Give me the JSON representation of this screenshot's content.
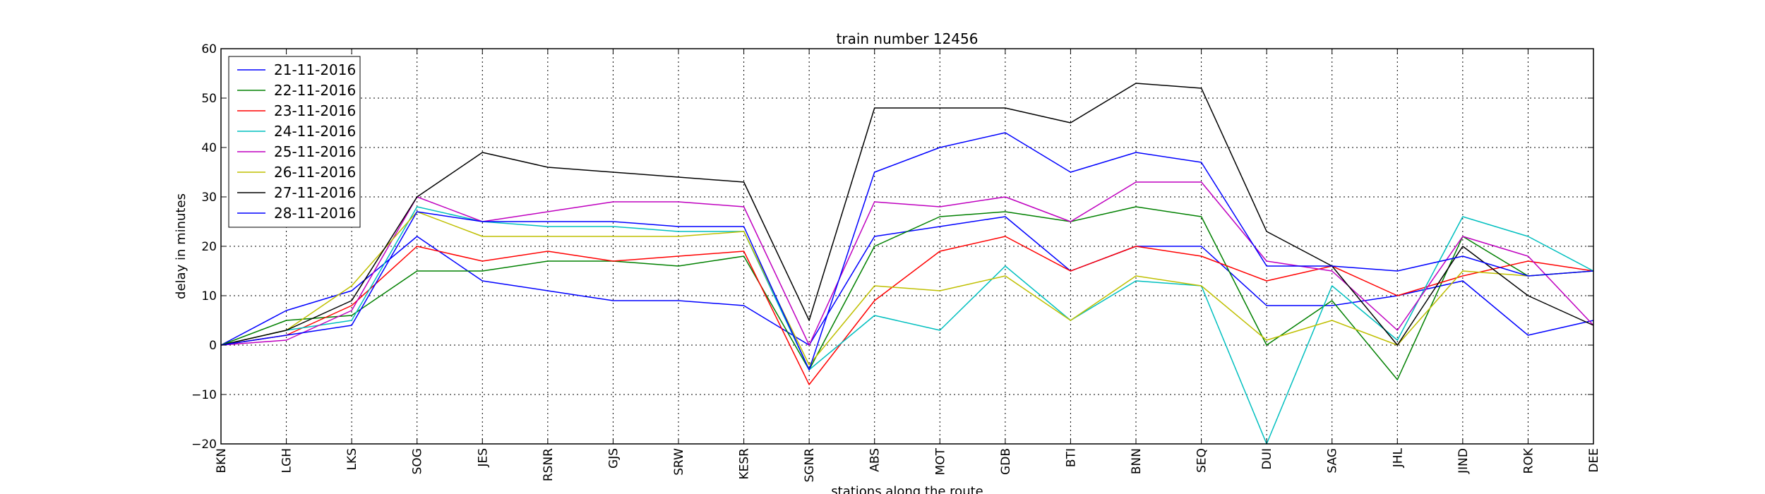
{
  "chart_data": {
    "type": "line",
    "title": "train number 12456",
    "xlabel": "stations along the route",
    "ylabel": "delay in minutes",
    "ylim": [
      -20,
      60
    ],
    "yticks": [
      -20,
      -10,
      0,
      10,
      20,
      30,
      40,
      50,
      60
    ],
    "grid": true,
    "legend_position": "top-left",
    "categories": [
      "BKN",
      "LGH",
      "LKS",
      "SOG",
      "JES",
      "RSNR",
      "GJS",
      "SRW",
      "KESR",
      "SGNR",
      "ABS",
      "MOT",
      "GDB",
      "BTI",
      "BNN",
      "SEQ",
      "DUI",
      "SAG",
      "JHL",
      "JIND",
      "ROK",
      "DEE"
    ],
    "series": [
      {
        "name": "21-11-2016",
        "color": "#0000ff",
        "values": [
          0,
          7,
          11,
          22,
          13,
          11,
          9,
          9,
          8,
          0,
          22,
          24,
          26,
          15,
          20,
          20,
          8,
          8,
          10,
          13,
          2,
          5
        ]
      },
      {
        "name": "22-11-2016",
        "color": "#008000",
        "values": [
          0,
          5,
          6,
          15,
          15,
          17,
          17,
          16,
          18,
          -5,
          20,
          26,
          27,
          25,
          28,
          26,
          0,
          9,
          -7,
          22,
          14,
          15
        ]
      },
      {
        "name": "23-11-2016",
        "color": "#ff0000",
        "values": [
          0,
          2,
          8,
          20,
          17,
          19,
          17,
          18,
          19,
          -8,
          9,
          19,
          22,
          15,
          20,
          18,
          13,
          16,
          10,
          14,
          17,
          15
        ]
      },
      {
        "name": "24-11-2016",
        "color": "#00bfbf",
        "values": [
          0,
          3,
          5,
          28,
          25,
          24,
          24,
          23,
          23,
          -5,
          6,
          3,
          16,
          5,
          13,
          12,
          -20,
          12,
          1,
          26,
          22,
          15
        ]
      },
      {
        "name": "25-11-2016",
        "color": "#bf00bf",
        "values": [
          0,
          1,
          7,
          30,
          25,
          27,
          29,
          29,
          28,
          0,
          29,
          28,
          30,
          25,
          33,
          33,
          17,
          15,
          3,
          22,
          18,
          4
        ]
      },
      {
        "name": "26-11-2016",
        "color": "#bfbf00",
        "values": [
          0,
          3,
          12,
          27,
          22,
          22,
          22,
          22,
          23,
          -4,
          12,
          11,
          14,
          5,
          14,
          12,
          1,
          5,
          0,
          15,
          14,
          15
        ]
      },
      {
        "name": "27-11-2016",
        "color": "#000000",
        "values": [
          0,
          3,
          9,
          30,
          39,
          36,
          35,
          34,
          33,
          5,
          48,
          48,
          48,
          45,
          53,
          52,
          23,
          16,
          0,
          20,
          10,
          4
        ]
      },
      {
        "name": "28-11-2016",
        "color": "#0000ff",
        "values": [
          0,
          2,
          4,
          27,
          25,
          25,
          25,
          24,
          24,
          -5,
          35,
          40,
          43,
          35,
          39,
          37,
          16,
          16,
          15,
          18,
          14,
          15
        ]
      }
    ]
  }
}
